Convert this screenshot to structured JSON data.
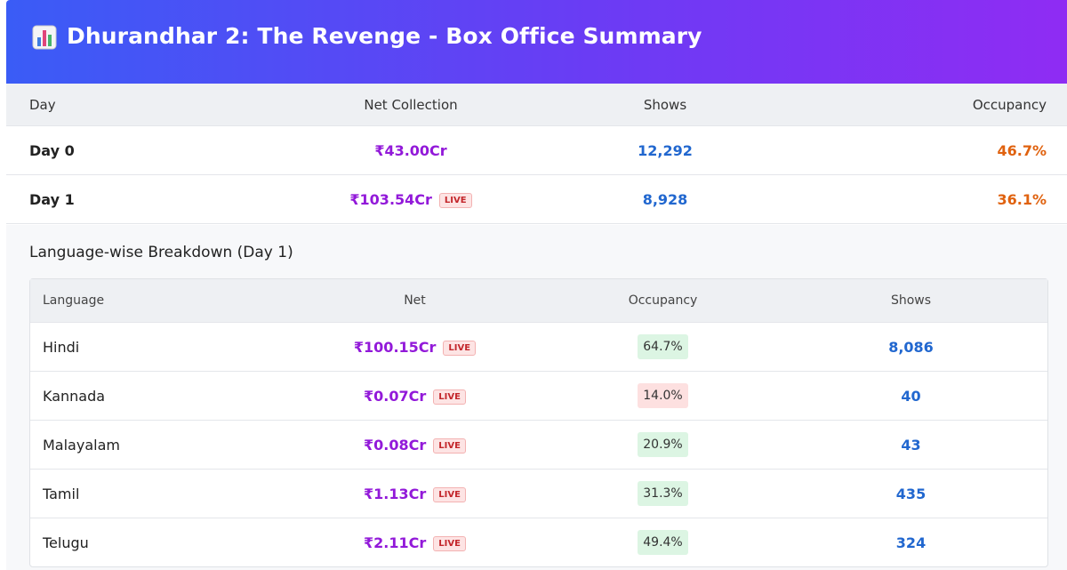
{
  "header": {
    "title": "Dhurandhar 2: The Revenge - Box Office Summary"
  },
  "summary": {
    "headers": [
      "Day",
      "Net Collection",
      "Shows",
      "Occupancy"
    ],
    "rows": [
      {
        "day": "Day 0",
        "net": "₹43.00Cr",
        "shows": "12,292",
        "occupancy": "46.7%"
      },
      {
        "day": "Day 1",
        "net": "₹103.54Cr",
        "live": "LIVE",
        "shows": "8,928",
        "occupancy": "36.1%"
      }
    ]
  },
  "breakdown": {
    "title": "Language-wise Breakdown (Day 1)",
    "headers": [
      "Language",
      "Net",
      "Occupancy",
      "Shows"
    ],
    "rows": [
      {
        "language": "Hindi",
        "net": "₹100.15Cr",
        "live": "LIVE",
        "occupancy": "64.7%",
        "occupancy_color": "#dcf5e3",
        "shows": "8,086"
      },
      {
        "language": "Kannada",
        "net": "₹0.07Cr",
        "live": "LIVE",
        "occupancy": "14.0%",
        "occupancy_color": "#fde0e0",
        "shows": "40"
      },
      {
        "language": "Malayalam",
        "net": "₹0.08Cr",
        "live": "LIVE",
        "occupancy": "20.9%",
        "occupancy_color": "#dcf5e3",
        "shows": "43"
      },
      {
        "language": "Tamil",
        "net": "₹1.13Cr",
        "live": "LIVE",
        "occupancy": "31.3%",
        "occupancy_color": "#dcf5e3",
        "shows": "435"
      },
      {
        "language": "Telugu",
        "net": "₹2.11Cr",
        "live": "LIVE",
        "occupancy": "49.4%",
        "occupancy_color": "#dcf5e3",
        "shows": "324"
      }
    ]
  }
}
